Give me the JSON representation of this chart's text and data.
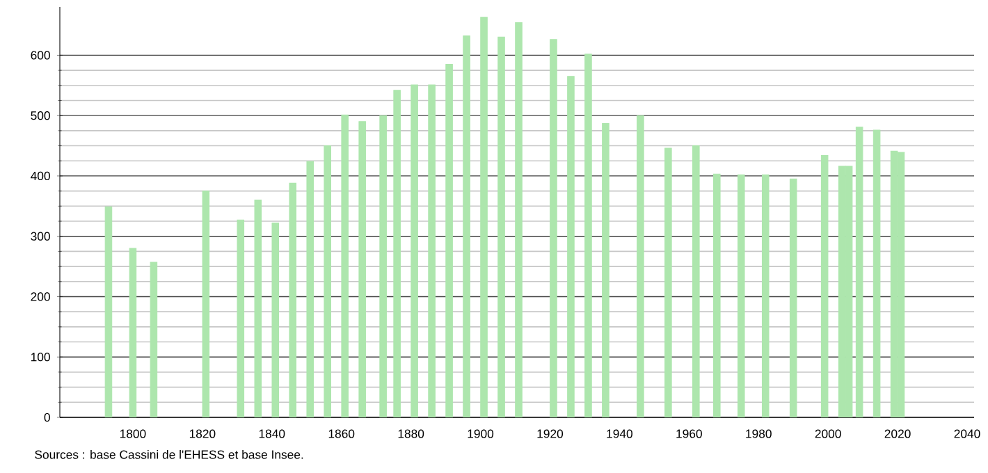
{
  "chart_data": {
    "type": "bar",
    "color": "#ade6ad",
    "x": [
      1793,
      1800,
      1806,
      1821,
      1831,
      1836,
      1841,
      1846,
      1851,
      1856,
      1861,
      1866,
      1872,
      1876,
      1881,
      1886,
      1891,
      1896,
      1901,
      1906,
      1911,
      1921,
      1926,
      1931,
      1936,
      1946,
      1954,
      1962,
      1968,
      1975,
      1982,
      1990,
      1999,
      2004,
      2006,
      2009,
      2014,
      2019,
      2021
    ],
    "values": [
      349,
      280,
      257,
      375,
      327,
      360,
      322,
      388,
      424,
      450,
      501,
      490,
      500,
      542,
      551,
      551,
      585,
      632,
      663,
      630,
      654,
      626,
      565,
      602,
      487,
      500,
      446,
      450,
      403,
      402,
      402,
      395,
      434,
      416,
      416,
      481,
      476,
      441,
      439
    ],
    "xlim": [
      1779,
      2042
    ],
    "xticks": [
      1800,
      1820,
      1840,
      1860,
      1880,
      1900,
      1920,
      1940,
      1960,
      1980,
      2000,
      2020,
      2040
    ],
    "ylim": [
      0,
      680
    ],
    "yticks": [
      0,
      100,
      200,
      300,
      400,
      500,
      600
    ],
    "grid": "y",
    "annotations": [
      "Sources : base Cassini de l'EHESS et base Insee."
    ]
  }
}
